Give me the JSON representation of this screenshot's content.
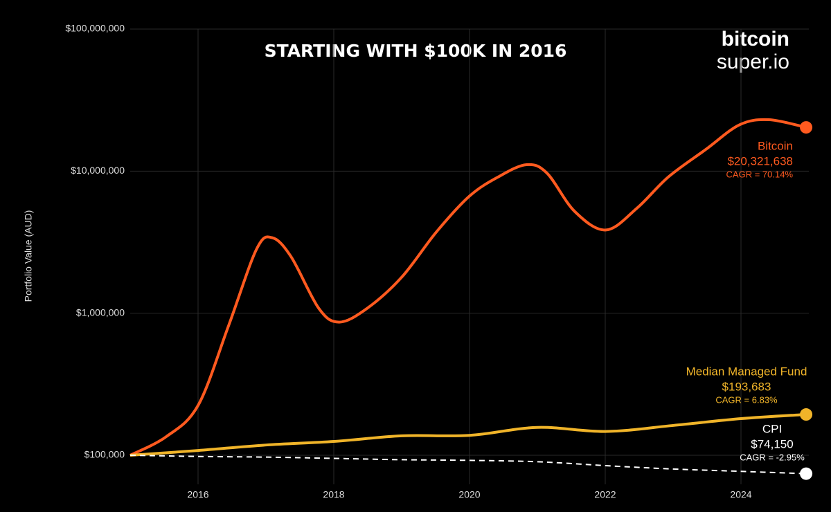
{
  "chart_data": {
    "type": "line",
    "title": "STARTING WITH $100K IN 2016",
    "y_label": "Portfolio Value (AUD)",
    "logo": {
      "line1": "bitcoin",
      "line2": "super.io"
    },
    "log_y": true,
    "grid": true,
    "smooth": true,
    "xlim": [
      2015,
      2025
    ],
    "xticks": [
      2016,
      2018,
      2020,
      2022,
      2024
    ],
    "ylim": [
      62400,
      100000000
    ],
    "yticks": [
      {
        "value": 100000,
        "label": "$100,000"
      },
      {
        "value": 1000000,
        "label": "$1,000,000"
      },
      {
        "value": 10000000,
        "label": "$10,000,000"
      },
      {
        "value": 100000000,
        "label": "$100,000,000"
      }
    ],
    "series": [
      {
        "name": "Bitcoin",
        "color": "#ff5a1f",
        "dashed": false,
        "x": [
          2015,
          2015.53,
          2016,
          2016.45,
          2016.86,
          2017.09,
          2017.37,
          2017.78,
          2018.08,
          2018.49,
          2019,
          2019.51,
          2020,
          2020.43,
          2020.84,
          2021.14,
          2021.55,
          2022.01,
          2022.47,
          2022.93,
          2023.49,
          2023.98,
          2024.41,
          2024.96
        ],
        "values": [
          100000,
          135000,
          224000,
          817000,
          2810000,
          3400000,
          2500000,
          1080000,
          865000,
          1080000,
          1790000,
          3720000,
          6670000,
          9140000,
          11100000,
          9700000,
          5200000,
          3850000,
          5500000,
          9100000,
          14300000,
          21200000,
          23000000,
          20321638
        ],
        "end_label": "$20,321,638",
        "cagr": "CAGR = 70.14%"
      },
      {
        "name": "Median Managed Fund",
        "color": "#f0b429",
        "dashed": false,
        "x": [
          2015,
          2016,
          2017,
          2018,
          2019,
          2020,
          2021,
          2022,
          2023,
          2024,
          2024.96
        ],
        "values": [
          100000,
          108000,
          118000,
          125000,
          137000,
          138000,
          157000,
          147000,
          162000,
          181000,
          193683
        ],
        "end_label": "$193,683",
        "cagr": "CAGR = 6.83%"
      },
      {
        "name": "CPI",
        "color": "#ffffff",
        "dashed": true,
        "x": [
          2015,
          2016,
          2017,
          2018,
          2019,
          2020,
          2021,
          2022,
          2023,
          2024,
          2024.96
        ],
        "values": [
          100000,
          98000,
          97000,
          95000,
          93000,
          92000,
          90000,
          84500,
          80000,
          77000,
          74150
        ],
        "end_label": "$74,150",
        "cagr": "CAGR = -2.95%"
      }
    ]
  }
}
